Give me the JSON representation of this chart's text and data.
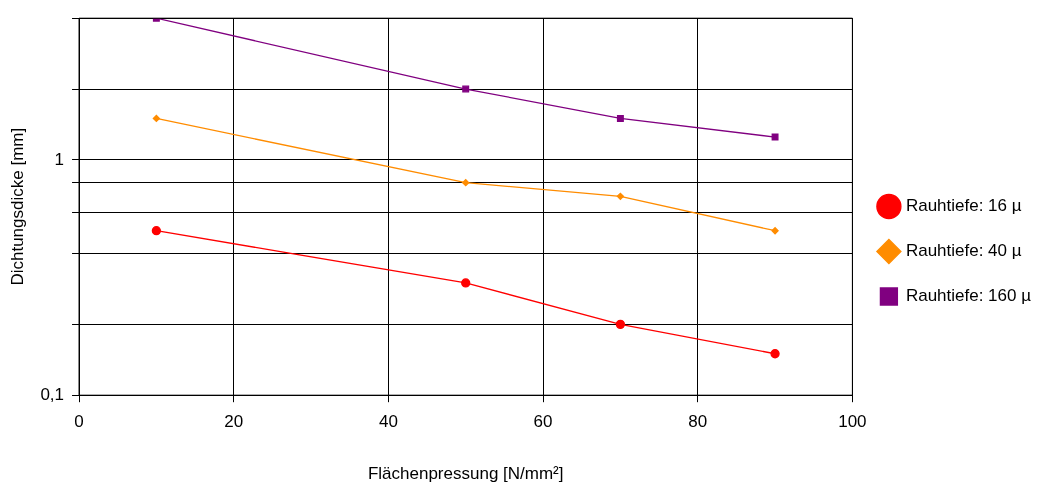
{
  "chart_data": {
    "type": "line",
    "xlabel": "Flächenpressung [N/mm²]",
    "ylabel": "Dichtungsdicke [mm]",
    "x": [
      10,
      50,
      70,
      90
    ],
    "series": [
      {
        "name": "Rauhtiefe: 16 µ",
        "color": "#ff0000",
        "marker": "circle",
        "values": [
          0.5,
          0.3,
          0.2,
          0.15
        ]
      },
      {
        "name": "Rauhtiefe: 40 µ",
        "color": "#ff8c00",
        "marker": "diamond",
        "values": [
          1.5,
          0.8,
          0.7,
          0.5
        ]
      },
      {
        "name": "Rauhtiefe: 160 µ",
        "color": "#800080",
        "marker": "square",
        "values": [
          4,
          2,
          1.5,
          1.25
        ]
      }
    ],
    "log": "y",
    "xlim": [
      0,
      100
    ],
    "xticks": [
      0,
      20,
      40,
      60,
      80,
      100
    ],
    "ylim": [
      0.1,
      4
    ],
    "yticks": [
      {
        "value": 0.1,
        "label": "0,1"
      },
      {
        "value": 0.2,
        "label": null
      },
      {
        "value": 0.4,
        "label": null
      },
      {
        "value": 0.6,
        "label": null
      },
      {
        "value": 0.8,
        "label": null
      },
      {
        "value": 1,
        "label": "1"
      },
      {
        "value": 2,
        "label": null
      },
      {
        "value": 4,
        "label": null
      }
    ],
    "grid": true,
    "legend": "right"
  }
}
